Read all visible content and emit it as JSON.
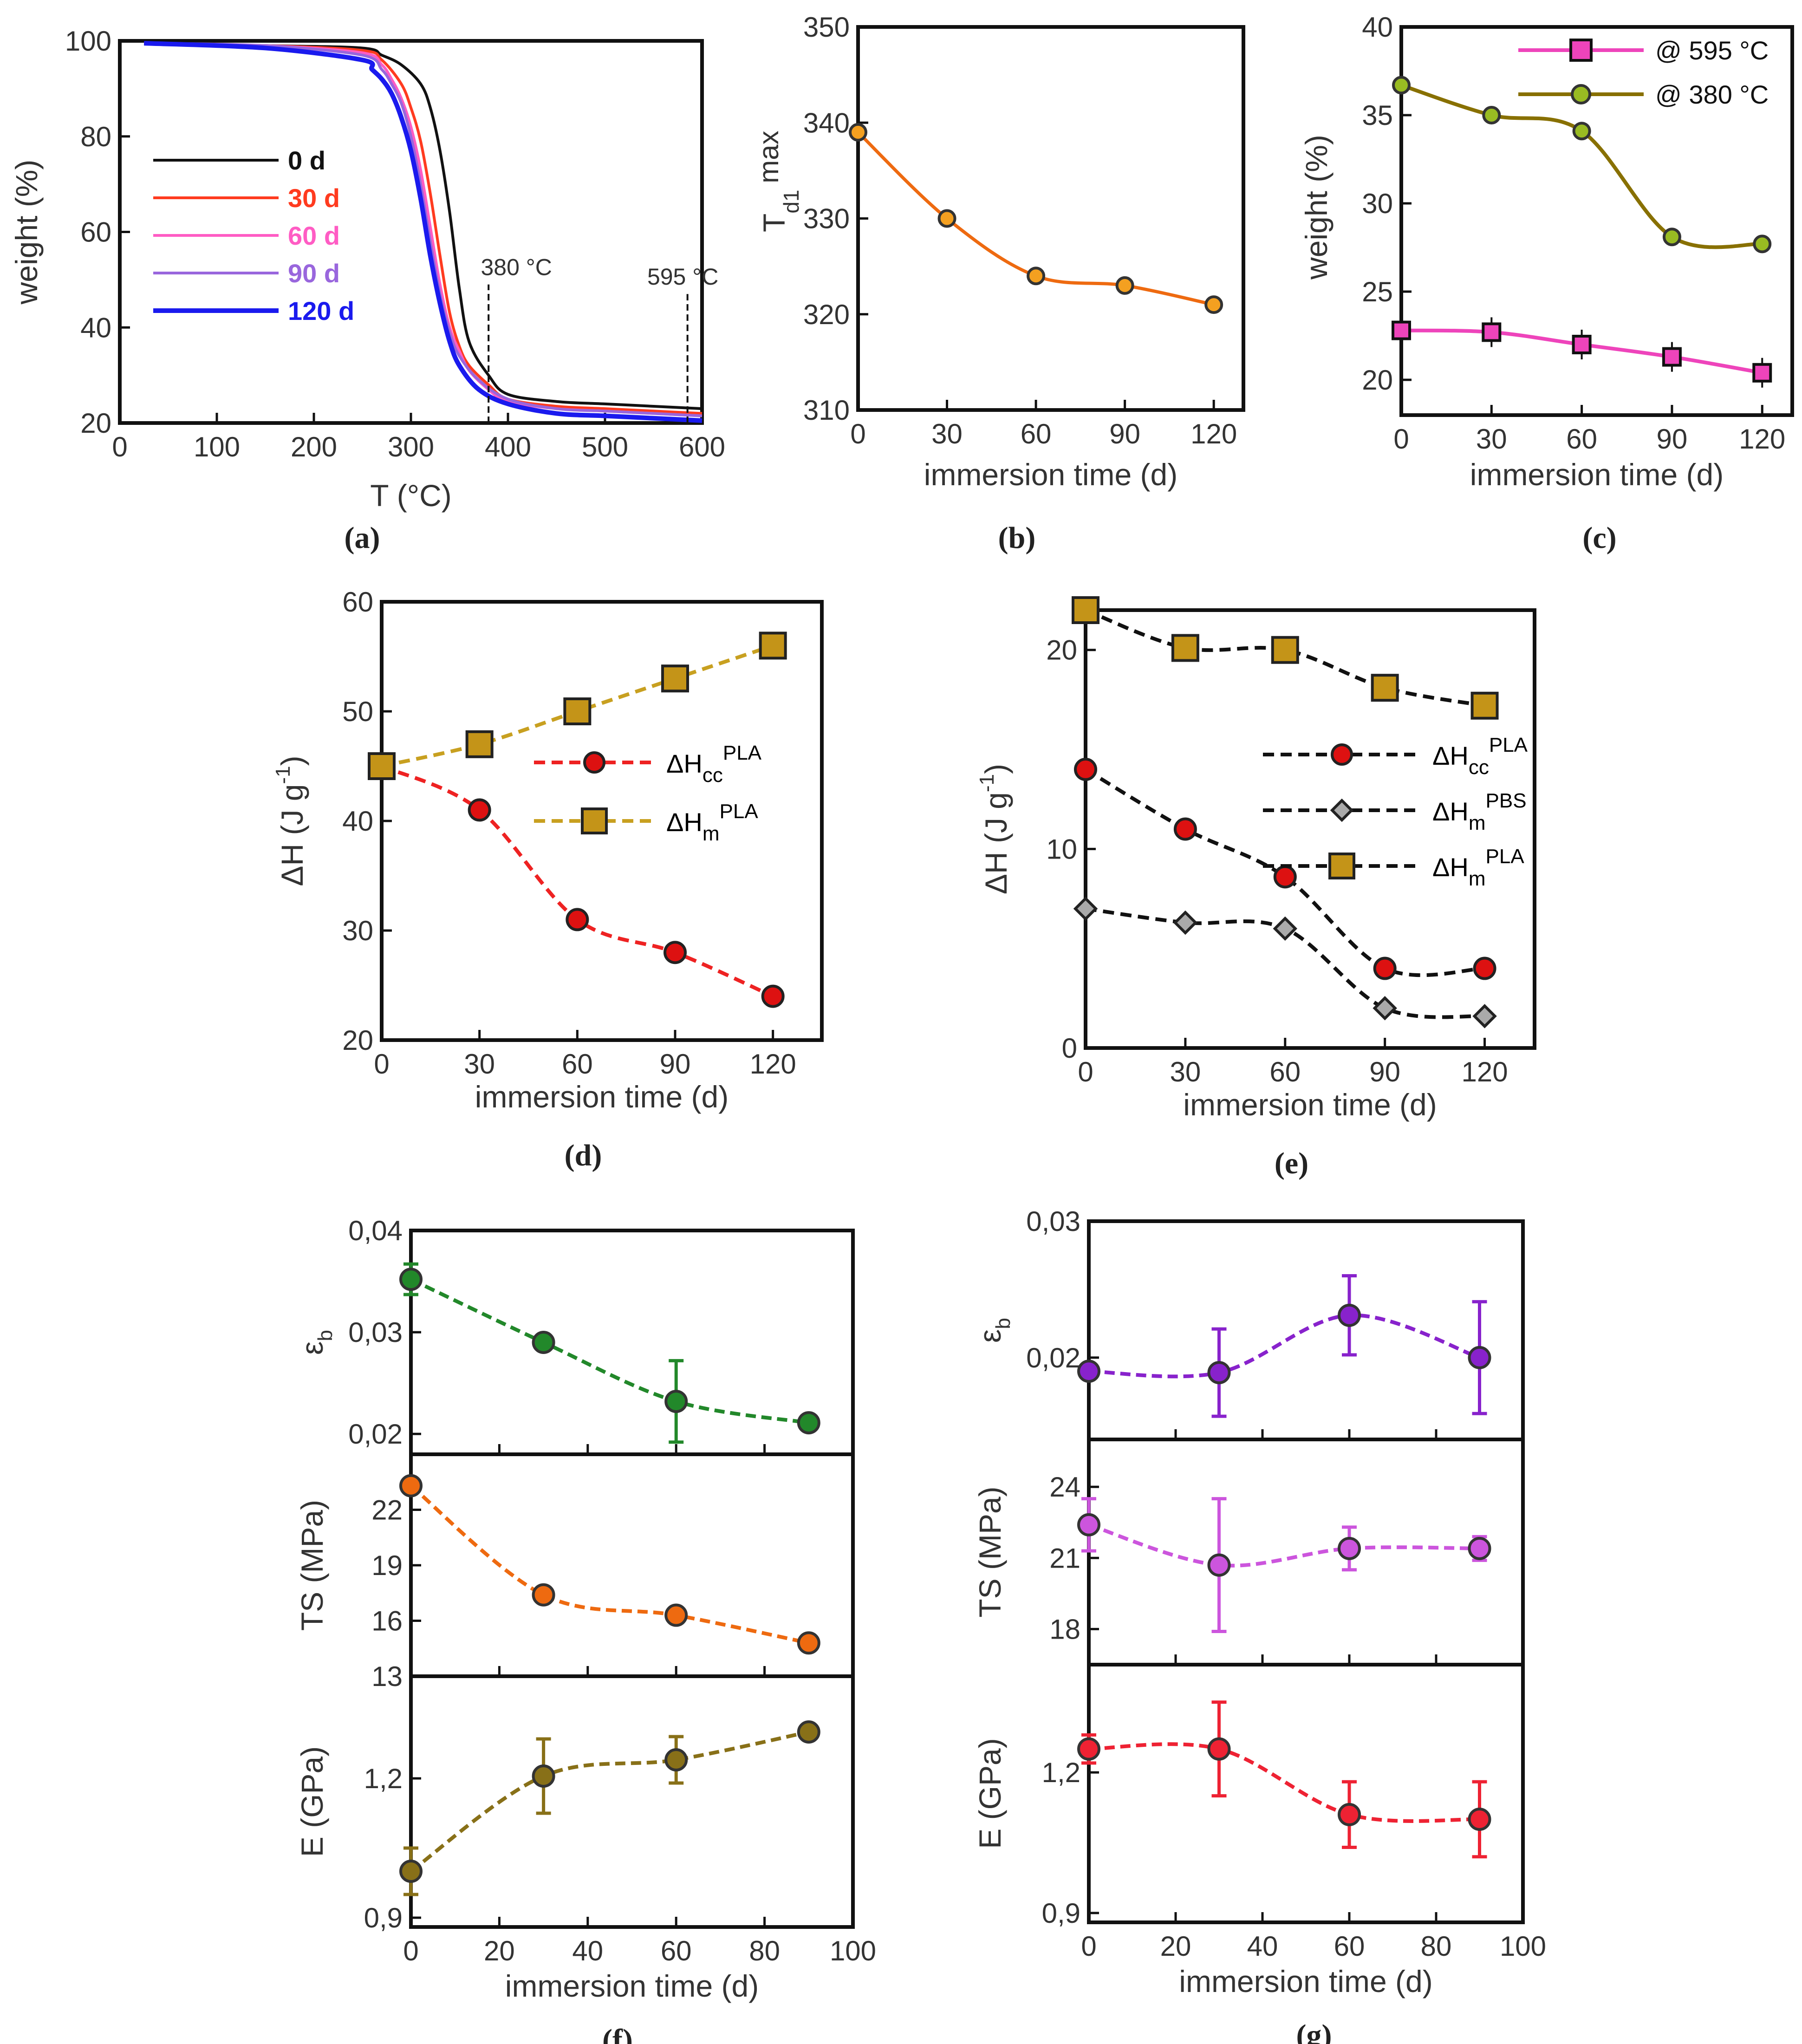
{
  "figure": {
    "panel_labels": [
      "(a)",
      "(b)",
      "(c)",
      "(d)",
      "(e)",
      "(f)",
      "(g)"
    ]
  },
  "chart_data": [
    {
      "id": "a",
      "type": "line",
      "xlabel": "T (°C)",
      "ylabel": "weight  (%)",
      "xlim": [
        0,
        600
      ],
      "ylim": [
        20,
        100
      ],
      "xticks": [
        0,
        100,
        200,
        300,
        400,
        500,
        600
      ],
      "yticks": [
        20,
        40,
        60,
        80,
        100
      ],
      "annotations": [
        {
          "text": "380 °C",
          "x": 380
        },
        {
          "text": "595 °C",
          "x": 585
        }
      ],
      "series": [
        {
          "name": "0 d",
          "color": "#111111",
          "x": [
            25,
            150,
            250,
            270,
            290,
            310,
            320,
            330,
            340,
            350,
            360,
            380,
            400,
            450,
            500,
            550,
            600
          ],
          "y": [
            99.5,
            99,
            98.5,
            97,
            95,
            91,
            86,
            77,
            64,
            48,
            37,
            30,
            26,
            24.5,
            24,
            23.5,
            23
          ]
        },
        {
          "name": "30 d",
          "color": "#ff3b1f",
          "x": [
            25,
            150,
            250,
            270,
            290,
            300,
            310,
            320,
            330,
            340,
            350,
            360,
            380,
            400,
            450,
            500,
            550,
            600
          ],
          "y": [
            99.5,
            99,
            98,
            96,
            91,
            86,
            79,
            68,
            55,
            43,
            36,
            32,
            28,
            25,
            23.5,
            23,
            22.5,
            22
          ]
        },
        {
          "name": "60 d",
          "color": "#ff5cc4",
          "x": [
            25,
            150,
            250,
            270,
            280,
            290,
            300,
            310,
            320,
            330,
            340,
            350,
            360,
            380,
            400,
            450,
            500,
            550,
            600
          ],
          "y": [
            99.5,
            99,
            97.5,
            95,
            92,
            88,
            82,
            73,
            61,
            49,
            40,
            35,
            31,
            27,
            24.5,
            23,
            22.5,
            22,
            21.5
          ]
        },
        {
          "name": "90 d",
          "color": "#9966dd",
          "x": [
            25,
            150,
            250,
            270,
            280,
            290,
            300,
            310,
            320,
            330,
            340,
            350,
            370,
            400,
            450,
            500,
            550,
            600
          ],
          "y": [
            99.5,
            99,
            97,
            94,
            91,
            87,
            80,
            70,
            58,
            47,
            39,
            34,
            29,
            25,
            23,
            22.5,
            22,
            21.5
          ]
        },
        {
          "name": "120 d",
          "color": "#1a1aee",
          "x": [
            25,
            150,
            250,
            260,
            270,
            280,
            290,
            300,
            310,
            320,
            330,
            340,
            350,
            370,
            400,
            450,
            500,
            550,
            600
          ],
          "y": [
            99.5,
            98.5,
            96,
            94,
            92,
            89,
            84,
            77,
            67,
            55,
            45,
            37,
            32,
            27,
            24,
            22,
            21.5,
            21,
            20.5
          ]
        }
      ]
    },
    {
      "id": "b",
      "type": "line",
      "xlabel": "immersion time (d)",
      "ylabel": "T",
      "ylabel_sub": "d1",
      "ylabel_sup": "max",
      "xlim": [
        0,
        130
      ],
      "ylim": [
        310,
        350
      ],
      "xticks": [
        0,
        30,
        60,
        90,
        120
      ],
      "yticks": [
        310,
        320,
        330,
        340,
        350
      ],
      "series": [
        {
          "name": "Td1max",
          "color": "#ee6a10",
          "x": [
            0,
            30,
            60,
            90,
            120
          ],
          "y": [
            339,
            330,
            324,
            323,
            321
          ]
        }
      ]
    },
    {
      "id": "c",
      "type": "line",
      "xlabel": "immersion time (d)",
      "ylabel": "weight (%)",
      "xlim": [
        0,
        130
      ],
      "ylim": [
        18,
        40
      ],
      "xticks": [
        0,
        30,
        60,
        90,
        120
      ],
      "yticks": [
        20,
        25,
        30,
        35,
        40
      ],
      "series": [
        {
          "name": "@ 595 °C",
          "color": "#ee44bb",
          "marker": "square",
          "x": [
            0,
            30,
            60,
            90,
            120
          ],
          "y": [
            22.8,
            22.7,
            22,
            21.3,
            20.4
          ]
        },
        {
          "name": "@ 380 °C",
          "color": "#887000",
          "marker": "circle",
          "marker_color": "#99bb22",
          "x": [
            0,
            30,
            60,
            90,
            120
          ],
          "y": [
            36.7,
            35,
            34.1,
            28.1,
            27.7
          ]
        }
      ]
    },
    {
      "id": "d",
      "type": "line",
      "xlabel": "immersion time (d)",
      "ylabel": "ΔH (J g",
      "xlim": [
        0,
        135
      ],
      "ylim": [
        20,
        60
      ],
      "xticks": [
        0,
        30,
        60,
        90,
        120
      ],
      "yticks": [
        20,
        30,
        40,
        50,
        60
      ],
      "series": [
        {
          "name": "ΔHccPLA",
          "label_main": "ΔH",
          "label_sub": "cc",
          "label_sup": "PLA",
          "color": "#ee2222",
          "marker": "circle",
          "marker_color": "#dd1111",
          "x": [
            0,
            30,
            60,
            90,
            120
          ],
          "y": [
            45,
            41,
            31,
            28,
            24
          ]
        },
        {
          "name": "ΔHmPLA",
          "label_main": "ΔH",
          "label_sub": "m",
          "label_sup": "PLA",
          "color": "#c8a020",
          "marker": "square",
          "marker_color": "#c49418",
          "x": [
            0,
            30,
            60,
            90,
            120
          ],
          "y": [
            45,
            47,
            50,
            53,
            56
          ]
        }
      ]
    },
    {
      "id": "e",
      "type": "line",
      "xlabel": "immersion time (d)",
      "ylabel": "ΔH (J g",
      "xlim": [
        0,
        135
      ],
      "ylim": [
        0,
        22
      ],
      "xticks": [
        0,
        30,
        60,
        90,
        120
      ],
      "yticks": [
        0,
        10,
        20
      ],
      "series": [
        {
          "name": "ΔHccPLA",
          "label_main": "ΔH",
          "label_sub": "cc",
          "label_sup": "PLA",
          "color": "#111111",
          "marker": "circle",
          "marker_color": "#dd1111",
          "x": [
            0,
            30,
            60,
            90,
            120
          ],
          "y": [
            14,
            11,
            8.6,
            4,
            4
          ]
        },
        {
          "name": "ΔHmPBS",
          "label_main": "ΔH",
          "label_sub": "m",
          "label_sup": "PBS",
          "color": "#111111",
          "marker": "diamond",
          "marker_color": "#aaaaaa",
          "x": [
            0,
            30,
            60,
            90,
            120
          ],
          "y": [
            7,
            6.3,
            6,
            2,
            1.6
          ]
        },
        {
          "name": "ΔHmPLA",
          "label_main": "ΔH",
          "label_sub": "m",
          "label_sup": "PLA",
          "color": "#111111",
          "marker": "square",
          "marker_color": "#c49418",
          "x": [
            0,
            30,
            60,
            90,
            120
          ],
          "y": [
            22,
            20.1,
            20,
            18.1,
            17.2
          ]
        }
      ]
    },
    {
      "id": "f",
      "type": "scatter",
      "xlabel": "immersion time (d)",
      "xlim": [
        0,
        100
      ],
      "xticks": [
        0,
        20,
        40,
        60,
        80,
        100
      ],
      "subplots": [
        {
          "ylabel": "ε",
          "ylabel_sub": "b",
          "ylim": [
            0.018,
            0.04
          ],
          "yticks": [
            0.02,
            0.03,
            0.04
          ],
          "ytick_labels": [
            "0,02",
            "0,03",
            "0,04"
          ],
          "color": "#22882a",
          "x": [
            0,
            30,
            60,
            90
          ],
          "y": [
            0.0352,
            0.029,
            0.0232,
            0.0211
          ],
          "err": [
            0.0015,
            0.0005,
            0.004,
            0.0006
          ]
        },
        {
          "ylabel": "TS (MPa)",
          "ylim": [
            13,
            25
          ],
          "yticks": [
            13,
            16,
            19,
            22
          ],
          "ytick_labels": [
            "13",
            "16",
            "19",
            "22"
          ],
          "color": "#ee6a10",
          "x": [
            0,
            30,
            60,
            90
          ],
          "y": [
            23.3,
            17.4,
            16.3,
            14.8
          ],
          "err": [
            0.4,
            0.4,
            0.4,
            0.4
          ]
        },
        {
          "ylabel": "E (GPa)",
          "ylim": [
            0.88,
            1.42
          ],
          "yticks": [
            0.9,
            1.2
          ],
          "ytick_labels": [
            "0,9",
            "1,2"
          ],
          "color": "#887018",
          "x": [
            0,
            30,
            60,
            90
          ],
          "y": [
            1.0,
            1.205,
            1.24,
            1.3
          ],
          "err": [
            0.05,
            0.08,
            0.05,
            0.015
          ]
        }
      ]
    },
    {
      "id": "g",
      "type": "scatter",
      "xlabel": "immersion time (d)",
      "xlim": [
        0,
        100
      ],
      "xticks": [
        0,
        20,
        40,
        60,
        80,
        100
      ],
      "subplots": [
        {
          "ylabel": "ε",
          "ylabel_sub": "b",
          "ylim": [
            0.014,
            0.03
          ],
          "yticks": [
            0.02,
            0.03
          ],
          "ytick_labels": [
            "0,02",
            "0,03"
          ],
          "color": "#8822cc",
          "x": [
            0,
            30,
            60,
            90
          ],
          "y": [
            0.019,
            0.0189,
            0.0231,
            0.02
          ],
          "err": [
            0.0005,
            0.0032,
            0.0029,
            0.0041
          ]
        },
        {
          "ylabel": "TS (MPa)",
          "ylim": [
            16.5,
            26
          ],
          "yticks": [
            18,
            21,
            24
          ],
          "ytick_labels": [
            "18",
            "21",
            "24"
          ],
          "color": "#cc55dd",
          "x": [
            0,
            30,
            60,
            90
          ],
          "y": [
            22.4,
            20.7,
            21.4,
            21.4
          ],
          "err": [
            1.1,
            2.8,
            0.9,
            0.5
          ]
        },
        {
          "ylabel": "E (GPa)",
          "ylim": [
            0.88,
            1.43
          ],
          "yticks": [
            0.9,
            1.2
          ],
          "ytick_labels": [
            "0,9",
            "1,2"
          ],
          "color": "#ee2233",
          "x": [
            0,
            30,
            60,
            90
          ],
          "y": [
            1.25,
            1.25,
            1.11,
            1.1
          ],
          "err": [
            0.03,
            0.1,
            0.07,
            0.08
          ]
        }
      ]
    }
  ]
}
